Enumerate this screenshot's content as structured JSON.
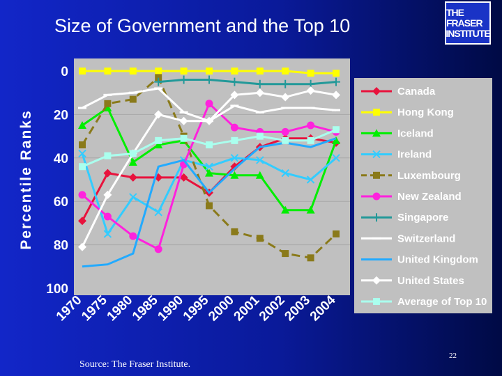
{
  "slide": {
    "title": "Size of Government and the Top 10",
    "logo_lines": [
      "THE FRASER",
      "INSTITUTE"
    ],
    "source": "Source: The Fraser Institute.",
    "page_number": "22"
  },
  "chart_data": {
    "type": "line",
    "title": "Size of Government and the Top 10",
    "ylabel": "Percentile Ranks",
    "xlabel": "",
    "ylim": [
      0,
      100
    ],
    "y_reversed": true,
    "yticks": [
      0,
      20,
      40,
      60,
      80,
      100
    ],
    "categories": [
      "1970",
      "1975",
      "1980",
      "1985",
      "1990",
      "1995",
      "2000",
      "2001",
      "2002",
      "2003",
      "2004"
    ],
    "legend_position": "right",
    "series": [
      {
        "name": "Canada",
        "color": "#e8123c",
        "marker": "diamond",
        "dash": "solid",
        "values": [
          69,
          47,
          49,
          49,
          49,
          56,
          44,
          35,
          31,
          31,
          33
        ]
      },
      {
        "name": "Hong Kong",
        "color": "#ffff00",
        "marker": "square",
        "dash": "solid",
        "values": [
          0,
          0,
          0,
          0,
          0,
          0,
          0,
          0,
          0,
          1,
          1
        ]
      },
      {
        "name": "Iceland",
        "color": "#00ee00",
        "marker": "triangle",
        "dash": "solid",
        "values": [
          25,
          17,
          42,
          34,
          32,
          47,
          48,
          48,
          64,
          64,
          32
        ]
      },
      {
        "name": "Ireland",
        "color": "#33ccff",
        "marker": "x",
        "dash": "solid",
        "values": [
          38,
          75,
          58,
          65,
          41,
          44,
          40,
          41,
          47,
          50,
          40
        ]
      },
      {
        "name": "Luxembourg",
        "color": "#8a7a1a",
        "marker": "square",
        "dash": "dash",
        "values": [
          34,
          15,
          13,
          3,
          30,
          62,
          74,
          77,
          84,
          86,
          75
        ]
      },
      {
        "name": "New Zealand",
        "color": "#ff22dd",
        "marker": "circle",
        "dash": "solid",
        "values": [
          57,
          67,
          76,
          82,
          43,
          15,
          26,
          28,
          28,
          25,
          28
        ]
      },
      {
        "name": "Singapore",
        "color": "#229999",
        "marker": "plus",
        "dash": "solid",
        "values": [
          null,
          null,
          null,
          5,
          4,
          4,
          5,
          6,
          6,
          6,
          5
        ]
      },
      {
        "name": "Switzerland",
        "color": "#ffffff",
        "marker": "dash",
        "dash": "solid",
        "values": [
          17,
          11,
          10,
          8,
          19,
          23,
          16,
          19,
          17,
          17,
          18
        ]
      },
      {
        "name": "United Kingdom",
        "color": "#22aaff",
        "marker": "none",
        "dash": "solid",
        "values": [
          90,
          89,
          84,
          44,
          41,
          56,
          45,
          35,
          33,
          35,
          31
        ]
      },
      {
        "name": "United States",
        "color": "#ffffff",
        "marker": "diamond",
        "dash": "solid",
        "values": [
          81,
          57,
          38,
          20,
          23,
          23,
          11,
          10,
          12,
          9,
          11
        ]
      },
      {
        "name": "Average of Top 10",
        "color": "#aaffee",
        "marker": "square",
        "dash": "solid",
        "values": [
          44,
          39,
          38,
          32,
          31,
          34,
          32,
          30,
          32,
          32,
          27
        ]
      }
    ]
  }
}
